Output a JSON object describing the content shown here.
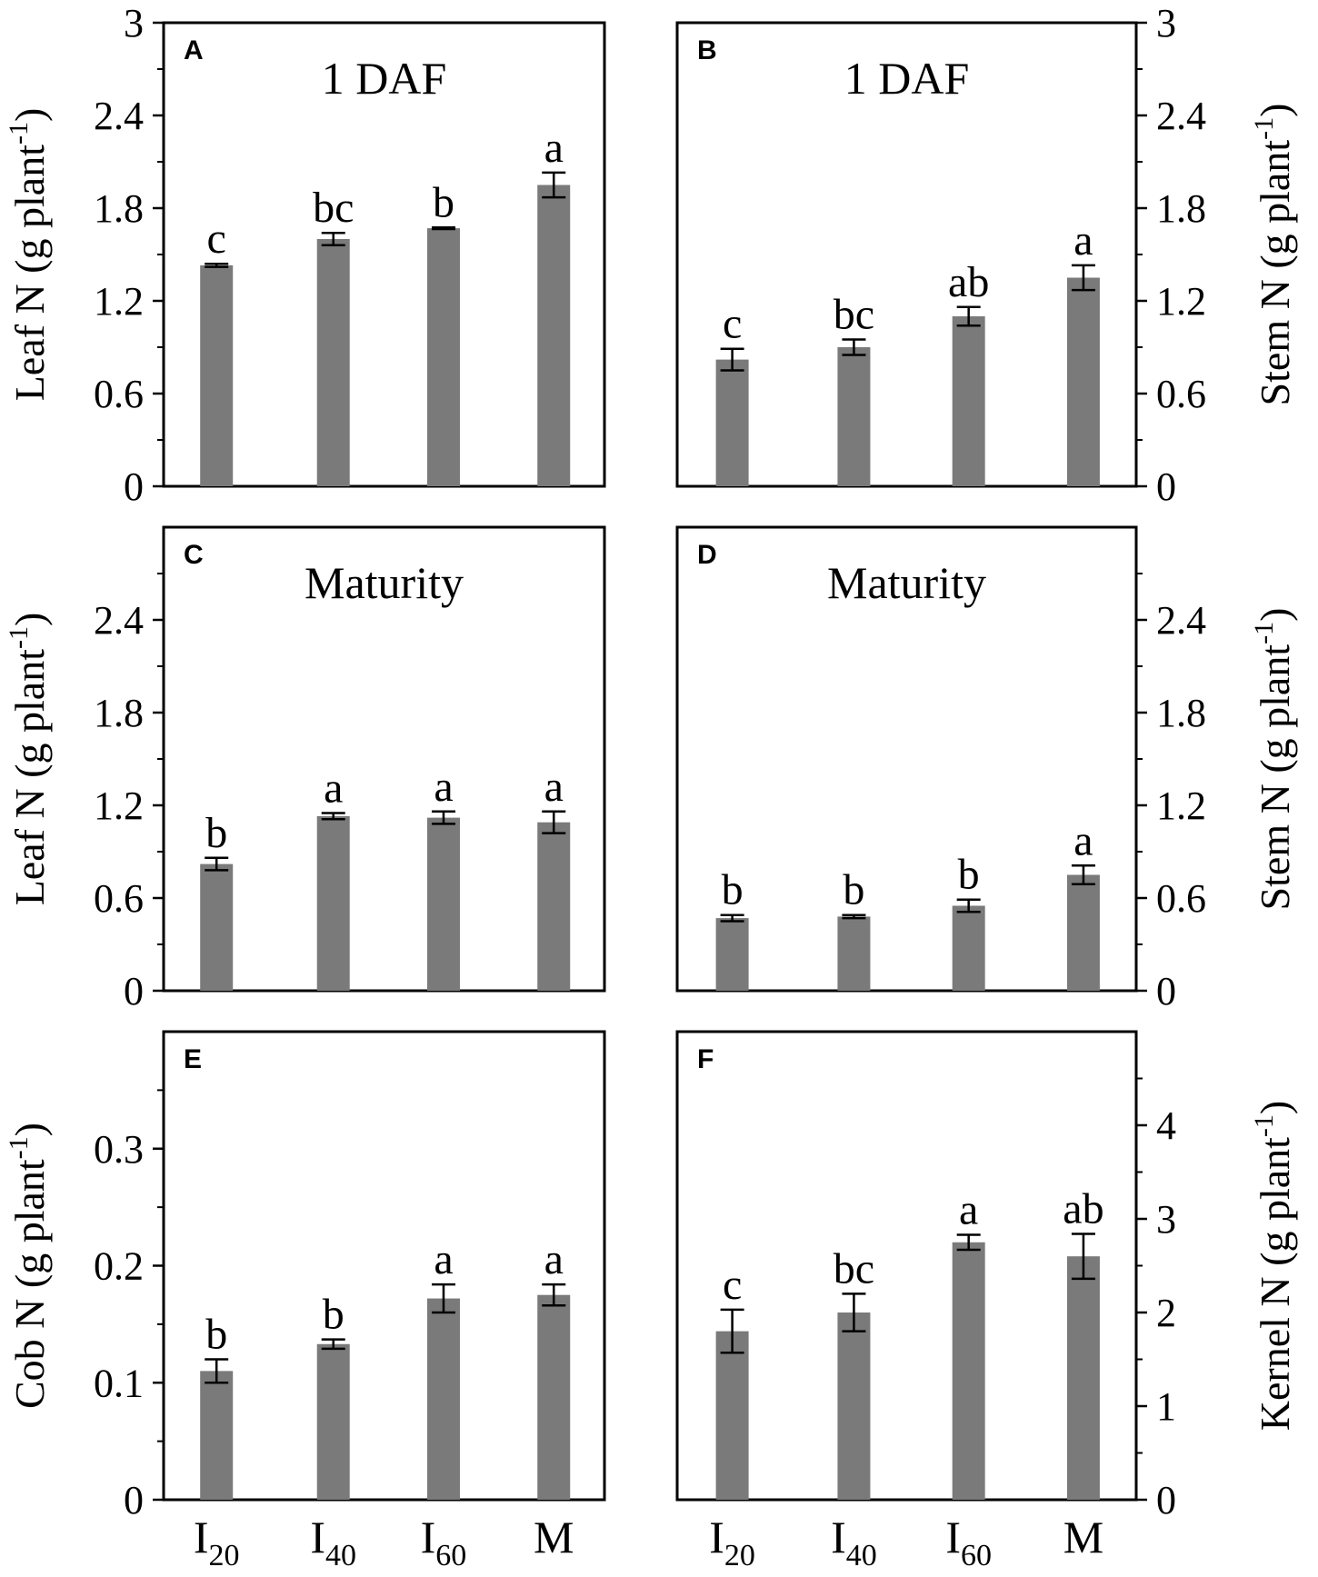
{
  "figure": {
    "categories": [
      {
        "base": "I",
        "sub": "20"
      },
      {
        "base": "I",
        "sub": "40"
      },
      {
        "base": "I",
        "sub": "60"
      },
      {
        "base": "M",
        "sub": ""
      }
    ],
    "bar_color": "#7a7a7a"
  },
  "chart_data": [
    {
      "type": "bar",
      "panel_label": "A",
      "title": "1 DAF",
      "ylabel": "Leaf N (g plant",
      "ylabel_sup": "-1",
      "ylabel_close": ")",
      "axis_side": "left",
      "ylim": [
        0,
        3
      ],
      "yticks": [
        0,
        0.6,
        1.2,
        1.8,
        2.4,
        3
      ],
      "ytick_labels": [
        "0",
        "0.6",
        "1.2",
        "1.8",
        "2.4",
        "3"
      ],
      "values": [
        1.43,
        1.6,
        1.67,
        1.95
      ],
      "errors": [
        0.01,
        0.04,
        0.005,
        0.08
      ],
      "letters": [
        "c",
        "bc",
        "b",
        "a"
      ]
    },
    {
      "type": "bar",
      "panel_label": "B",
      "title": "1 DAF",
      "ylabel": "Stem N (g plant",
      "ylabel_sup": "-1",
      "ylabel_close": ")",
      "axis_side": "right",
      "ylim": [
        0,
        3
      ],
      "yticks": [
        0,
        0.6,
        1.2,
        1.8,
        2.4,
        3
      ],
      "ytick_labels": [
        "0",
        "0.6",
        "1.2",
        "1.8",
        "2.4",
        "3"
      ],
      "values": [
        0.82,
        0.9,
        1.1,
        1.35
      ],
      "errors": [
        0.07,
        0.05,
        0.06,
        0.08
      ],
      "letters": [
        "c",
        "bc",
        "ab",
        "a"
      ]
    },
    {
      "type": "bar",
      "panel_label": "C",
      "title": "Maturity",
      "ylabel": "Leaf N (g plant",
      "ylabel_sup": "-1",
      "ylabel_close": ")",
      "axis_side": "left",
      "ylim": [
        0,
        3
      ],
      "yticks": [
        0,
        0.6,
        1.2,
        1.8,
        2.4
      ],
      "ytick_labels": [
        "0",
        "0.6",
        "1.2",
        "1.8",
        "2.4"
      ],
      "values": [
        0.82,
        1.13,
        1.12,
        1.09
      ],
      "errors": [
        0.04,
        0.02,
        0.04,
        0.07
      ],
      "letters": [
        "b",
        "a",
        "a",
        "a"
      ]
    },
    {
      "type": "bar",
      "panel_label": "D",
      "title": "Maturity",
      "ylabel": "Stem N (g plant",
      "ylabel_sup": "-1",
      "ylabel_close": ")",
      "axis_side": "right",
      "ylim": [
        0,
        3
      ],
      "yticks": [
        0,
        0.6,
        1.2,
        1.8,
        2.4
      ],
      "ytick_labels": [
        "0",
        "0.6",
        "1.2",
        "1.8",
        "2.4"
      ],
      "values": [
        0.47,
        0.48,
        0.55,
        0.75
      ],
      "errors": [
        0.02,
        0.01,
        0.04,
        0.06
      ],
      "letters": [
        "b",
        "b",
        "b",
        "a"
      ]
    },
    {
      "type": "bar",
      "panel_label": "E",
      "title": "",
      "ylabel": "Cob N (g plant",
      "ylabel_sup": "-1",
      "ylabel_close": ")",
      "axis_side": "left",
      "ylim": [
        0,
        0.4
      ],
      "yticks": [
        0,
        0.1,
        0.2,
        0.3
      ],
      "ytick_labels": [
        "0",
        "0.1",
        "0.2",
        "0.3"
      ],
      "values": [
        0.11,
        0.133,
        0.172,
        0.175
      ],
      "errors": [
        0.01,
        0.004,
        0.012,
        0.009
      ],
      "letters": [
        "b",
        "b",
        "a",
        "a"
      ]
    },
    {
      "type": "bar",
      "panel_label": "F",
      "title": "",
      "ylabel": "Kernel N (g plant",
      "ylabel_sup": "-1",
      "ylabel_close": ")",
      "axis_side": "right",
      "ylim": [
        0,
        5
      ],
      "yticks": [
        0,
        1,
        2,
        3,
        4
      ],
      "ytick_labels": [
        "0",
        "1",
        "2",
        "3",
        "4"
      ],
      "values": [
        1.8,
        2.0,
        2.75,
        2.6
      ],
      "errors": [
        0.23,
        0.2,
        0.08,
        0.24
      ],
      "letters": [
        "c",
        "bc",
        "a",
        "ab"
      ]
    }
  ]
}
